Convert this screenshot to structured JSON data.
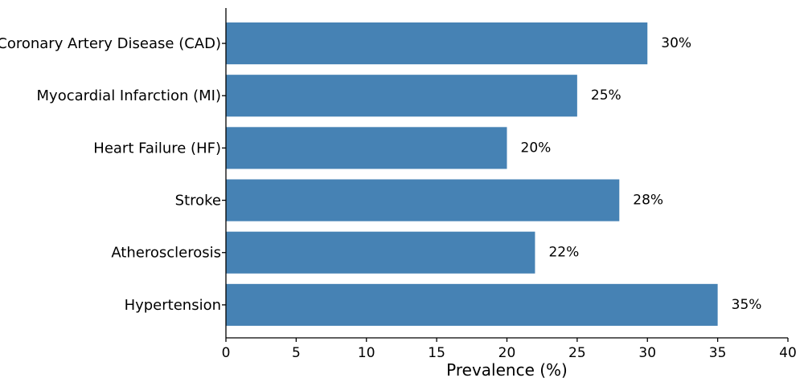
{
  "chart_data": {
    "type": "bar",
    "orientation": "horizontal",
    "categories": [
      "Coronary Artery Disease (CAD)",
      "Myocardial Infarction (MI)",
      "Heart Failure (HF)",
      "Stroke",
      "Atherosclerosis",
      "Hypertension"
    ],
    "values": [
      30,
      25,
      20,
      28,
      22,
      35
    ],
    "value_labels": [
      "30%",
      "25%",
      "20%",
      "28%",
      "22%",
      "35%"
    ],
    "title": "",
    "xlabel": "Prevalence (%)",
    "ylabel": "",
    "xlim": [
      0,
      40
    ],
    "xticks": [
      0,
      5,
      10,
      15,
      20,
      25,
      30,
      35,
      40
    ],
    "xtick_labels": [
      "0",
      "5",
      "10",
      "15",
      "20",
      "25",
      "30",
      "35",
      "40"
    ],
    "grid": false,
    "legend": "none",
    "bar_color": "#4682b4"
  }
}
